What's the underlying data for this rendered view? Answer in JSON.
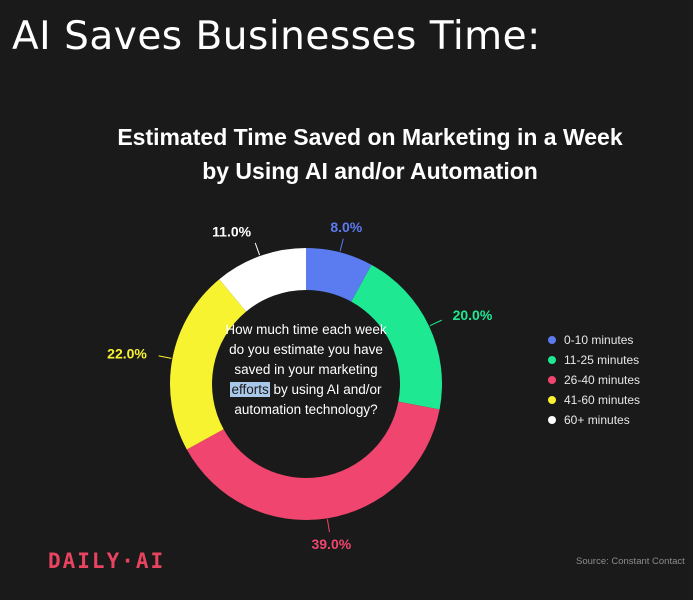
{
  "headline": "AI Saves Businesses Time:",
  "chart_data": {
    "type": "pie",
    "title_line1": "Estimated Time Saved on Marketing in a Week",
    "title_line2": "by Using AI and/or Automation",
    "donut": true,
    "center_text": {
      "before": "How much time each week do you estimate you have saved in your marketing ",
      "highlight": "efforts",
      "after": " by using AI and/or automation technology?"
    },
    "categories": [
      "0-10 minutes",
      "11-25 minutes",
      "26-40 minutes",
      "41-60 minutes",
      "60+ minutes"
    ],
    "values": [
      8.0,
      20.0,
      39.0,
      22.0,
      11.0
    ],
    "labels": [
      "8.0%",
      "20.0%",
      "39.0%",
      "22.0%",
      "11.0%"
    ],
    "colors": [
      "#5b7bf0",
      "#1fe892",
      "#f0456e",
      "#f7f331",
      "#ffffff"
    ],
    "legend_position": "right"
  },
  "footer": {
    "logo": "DAILY·AI",
    "source": "Source: Constant Contact"
  }
}
